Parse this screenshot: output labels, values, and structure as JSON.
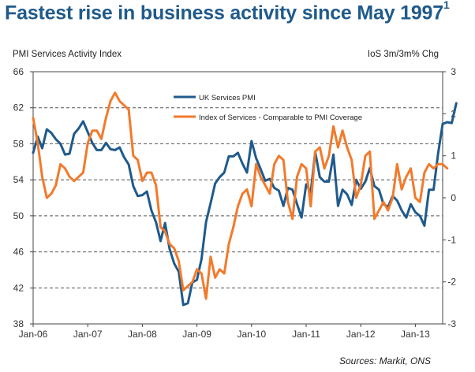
{
  "headline": {
    "text": "Fastest rise in business activity since May 1997",
    "footnote": "1"
  },
  "chart_data": {
    "type": "line",
    "title": "Fastest rise in business activity since May 1997",
    "left_axis_label": "PMI Services Activity Index",
    "right_axis_label": "IoS 3m/3m% Chg",
    "source": "Sources: Markit, ONS",
    "x_ticks": [
      "Jan-06",
      "Jan-07",
      "Jan-08",
      "Jan-09",
      "Jan-10",
      "Jan-11",
      "Jan-12",
      "Jan-13"
    ],
    "x_range": [
      "2006-01",
      "2013-07"
    ],
    "y_left": {
      "ticks": [
        38,
        42,
        46,
        50,
        54,
        58,
        62,
        66
      ],
      "ylim": [
        38,
        66
      ]
    },
    "y_right": {
      "ticks": [
        -3,
        -2,
        -1,
        0,
        1,
        2,
        3
      ],
      "ylim": [
        -3,
        3
      ]
    },
    "grid": "horizontal dashed",
    "legend_placement": "top-center",
    "series": [
      {
        "name": "UK Services PMI",
        "axis": "left",
        "color": "#1f5a8c",
        "start": "2006-01",
        "values": [
          57.0,
          58.8,
          57.5,
          59.6,
          59.2,
          58.5,
          58.0,
          56.8,
          56.9,
          59.1,
          59.7,
          60.5,
          59.3,
          58.1,
          57.3,
          57.3,
          58.1,
          57.4,
          57.3,
          57.6,
          56.5,
          55.7,
          53.3,
          52.2,
          52.3,
          52.7,
          50.6,
          49.3,
          47.2,
          49.2,
          46.3,
          44.7,
          43.8,
          40.1,
          40.3,
          42.6,
          42.9,
          45.2,
          49.3,
          51.4,
          53.6,
          54.3,
          54.8,
          56.6,
          56.6,
          57.0,
          55.8,
          54.8,
          58.3,
          56.4,
          55.2,
          53.9,
          54.1,
          53.1,
          52.8,
          51.1,
          53.1,
          52.9,
          51.3,
          49.8,
          53.5,
          52.6,
          57.1,
          54.3,
          53.8,
          53.8,
          56.8,
          51.1,
          52.9,
          52.4,
          51.2,
          54.0,
          53.0,
          53.8,
          55.3,
          53.3,
          52.9,
          51.3,
          51.0,
          52.2,
          51.7,
          50.6,
          49.8,
          51.3,
          50.4,
          50.0,
          48.9,
          52.9,
          52.9,
          56.9,
          60.2,
          60.4,
          60.3,
          62.5
        ]
      },
      {
        "name": "Index of Services - Comparable to PMI Coverage",
        "axis": "right",
        "color": "#f27a2b",
        "start": "2006-01",
        "values": [
          1.9,
          1.3,
          0.5,
          0.0,
          0.1,
          0.3,
          0.8,
          0.7,
          0.5,
          0.4,
          0.5,
          0.6,
          1.3,
          1.6,
          1.6,
          1.4,
          1.9,
          2.3,
          2.5,
          2.3,
          2.2,
          2.1,
          1.0,
          0.9,
          0.4,
          0.6,
          0.6,
          0.3,
          -0.7,
          -0.8,
          -1.1,
          -1.2,
          -1.5,
          -2.2,
          -2.1,
          -2.0,
          -1.7,
          -1.8,
          -2.4,
          -1.4,
          -1.9,
          -1.7,
          -1.8,
          -1.1,
          -0.7,
          -0.2,
          0.1,
          0.2,
          -0.2,
          0.8,
          0.5,
          0.3,
          0.1,
          0.8,
          1.0,
          0.9,
          -0.1,
          -0.5,
          0.5,
          0.8,
          0.7,
          -0.2,
          1.1,
          1.2,
          0.7,
          1.0,
          1.7,
          1.2,
          1.6,
          1.2,
          0.9,
          0.0,
          0.3,
          1.0,
          1.1,
          -0.5,
          -0.3,
          -0.1,
          -0.3,
          0.0,
          0.8,
          0.2,
          0.5,
          0.7,
          0.0,
          -0.1,
          0.6,
          0.8,
          0.7,
          0.8,
          0.8,
          0.7
        ]
      }
    ]
  }
}
